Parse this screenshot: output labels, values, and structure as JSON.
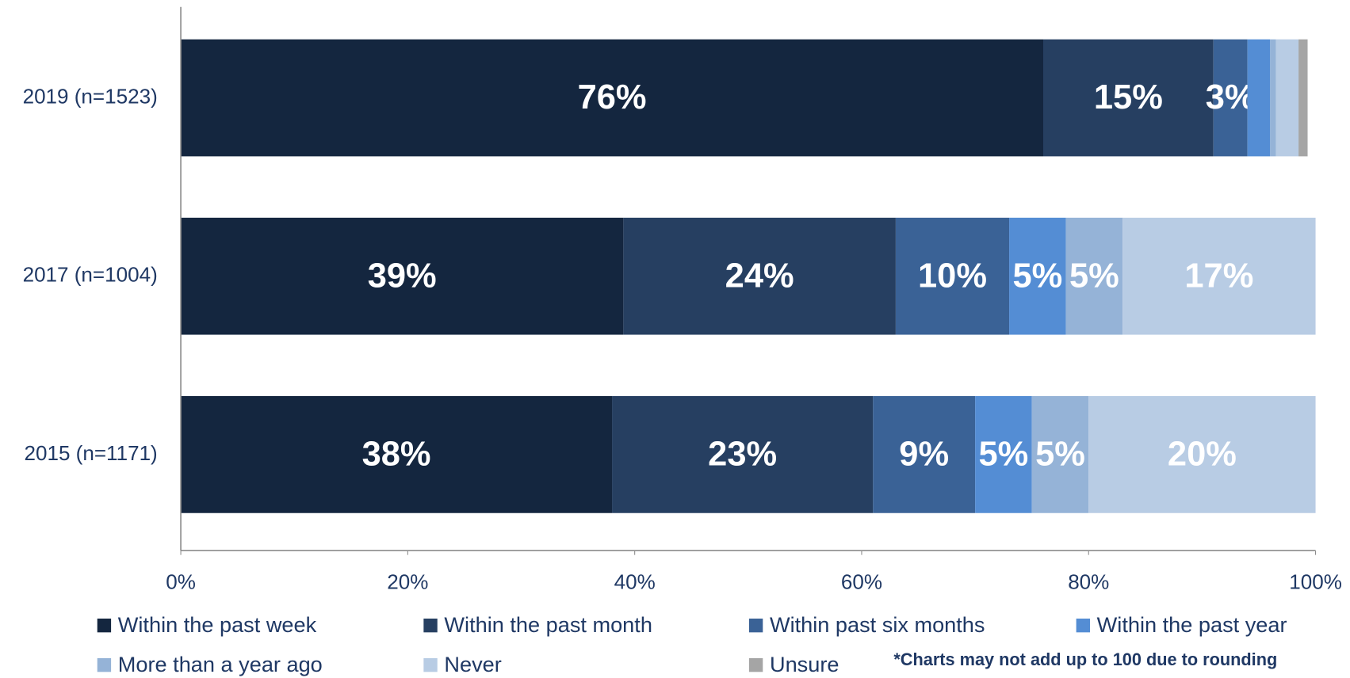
{
  "chart_data": {
    "type": "stacked_bar_horizontal",
    "categories": [
      "2019 (n=1523)",
      "2017 (n=1004)",
      "2015 (n=1171)"
    ],
    "series": [
      {
        "name": "Within the past week",
        "color": "#14263f",
        "values": [
          76,
          39,
          38
        ],
        "value_labels": [
          "76%",
          "39%",
          "38%"
        ]
      },
      {
        "name": "Within the past month",
        "color": "#263f61",
        "values": [
          15,
          24,
          23
        ],
        "value_labels": [
          "15%",
          "24%",
          "23%"
        ]
      },
      {
        "name": "Within past six months",
        "color": "#3a6296",
        "values": [
          3,
          10,
          9
        ],
        "value_labels": [
          "3%",
          "10%",
          "9%"
        ]
      },
      {
        "name": "Within the past year",
        "color": "#548dd4",
        "values": [
          2,
          5,
          5
        ],
        "value_labels": [
          null,
          "5%",
          "5%"
        ]
      },
      {
        "name": "More than a year ago",
        "color": "#95b3d7",
        "values": [
          0.5,
          5,
          5
        ],
        "value_labels": [
          null,
          "5%",
          "5%"
        ]
      },
      {
        "name": "Never",
        "color": "#b8cce4",
        "values": [
          2,
          17,
          20
        ],
        "value_labels": [
          null,
          "17%",
          "20%"
        ]
      },
      {
        "name": "Unsure",
        "color": "#a5a5a5",
        "values": [
          0.8,
          null,
          null
        ],
        "value_labels": [
          null,
          null,
          null
        ]
      }
    ],
    "xlim": [
      0,
      100
    ],
    "xticks": [
      {
        "value": 0,
        "label": "0%"
      },
      {
        "value": 20,
        "label": "20%"
      },
      {
        "value": 40,
        "label": "40%"
      },
      {
        "value": 60,
        "label": "60%"
      },
      {
        "value": 80,
        "label": "80%"
      },
      {
        "value": 100,
        "label": "100%"
      }
    ],
    "annotation": "*Charts may not add up to 100 due to rounding",
    "legend": "bottom"
  }
}
